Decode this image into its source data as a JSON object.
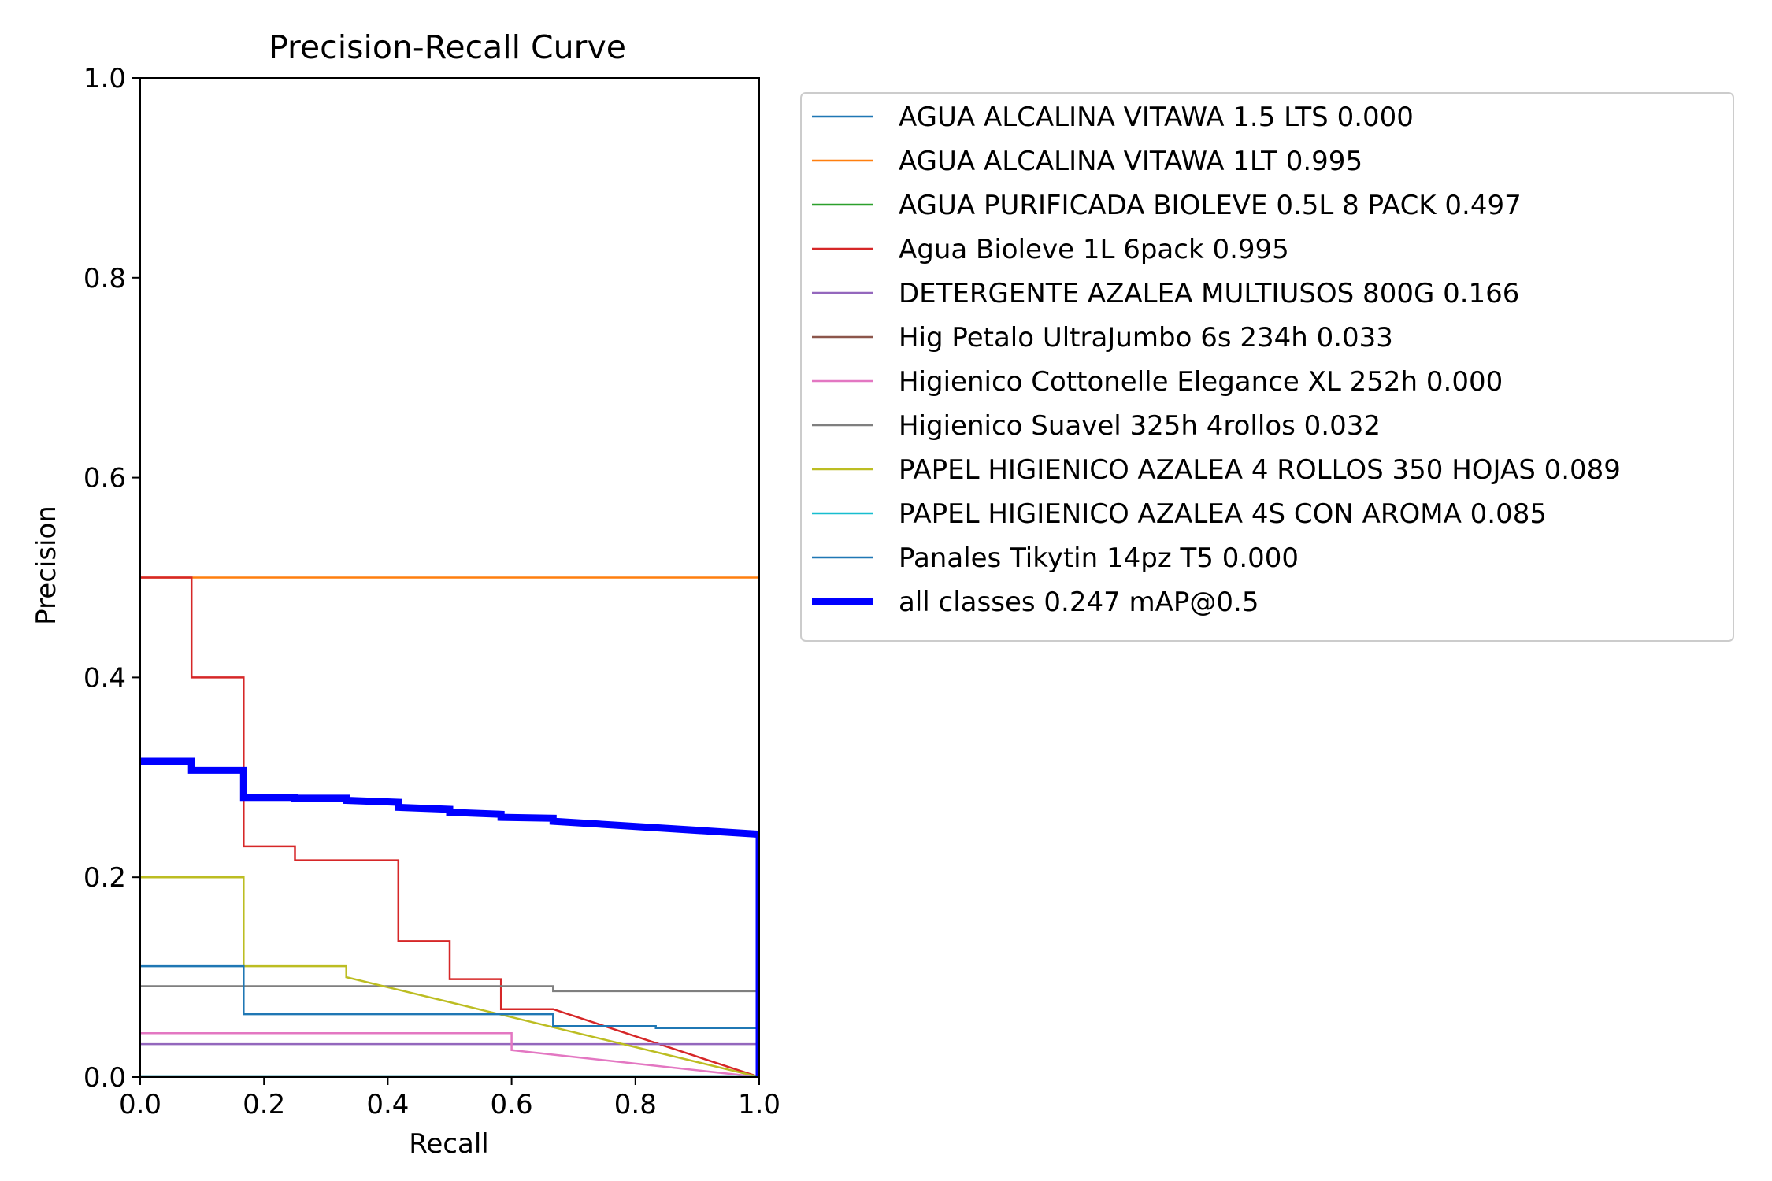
{
  "chart_data": {
    "type": "line",
    "title": "Precision-Recall Curve",
    "xlabel": "Recall",
    "ylabel": "Precision",
    "xlim": [
      0.0,
      1.0
    ],
    "ylim": [
      0.0,
      1.0
    ],
    "xticks": [
      "0.0",
      "0.2",
      "0.4",
      "0.6",
      "0.8",
      "1.0"
    ],
    "yticks": [
      "0.0",
      "0.2",
      "0.4",
      "0.6",
      "0.8",
      "1.0"
    ],
    "grid": false,
    "legend_position": "outside-right-top",
    "series": [
      {
        "name": "AGUA ALCALINA VITAWA 1.5 LTS 0.000",
        "color": "#1f77b4",
        "x": [
          0.0,
          1.0
        ],
        "y": [
          0.0,
          0.0
        ]
      },
      {
        "name": "AGUA ALCALINA VITAWA 1LT 0.995",
        "color": "#ff7f0e",
        "x": [
          0.0,
          1.0,
          1.0
        ],
        "y": [
          0.5,
          0.5,
          0.0
        ]
      },
      {
        "name": "AGUA PURIFICADA BIOLEVE 0.5L 8 PACK 0.497",
        "color": "#2ca02c",
        "x": [
          1.0,
          1.0
        ],
        "y": [
          1.0,
          0.0
        ]
      },
      {
        "name": "Agua Bioleve 1L 6pack 0.995",
        "color": "#d62728",
        "x": [
          0.0,
          0.083,
          0.083,
          0.167,
          0.167,
          0.25,
          0.25,
          0.417,
          0.417,
          0.5,
          0.5,
          0.583,
          0.583,
          0.667,
          1.0
        ],
        "y": [
          0.5,
          0.5,
          0.4,
          0.4,
          0.231,
          0.231,
          0.217,
          0.217,
          0.136,
          0.136,
          0.098,
          0.098,
          0.068,
          0.068,
          0.0
        ]
      },
      {
        "name": "DETERGENTE AZALEA MULTIUSOS 800G 0.166",
        "color": "#9467bd",
        "x": [
          0.0,
          1.0,
          1.0
        ],
        "y": [
          0.033,
          0.033,
          0.0
        ]
      },
      {
        "name": "Hig Petalo UltraJumbo 6s 234h 0.033",
        "color": "#8c564b",
        "x": [
          0.0,
          1.0
        ],
        "y": [
          0.0,
          0.0
        ]
      },
      {
        "name": "Higienico Cottonelle Elegance XL 252h 0.000",
        "color": "#e377c2",
        "x": [
          0.0,
          0.6,
          0.6,
          1.0
        ],
        "y": [
          0.044,
          0.044,
          0.027,
          0.0
        ]
      },
      {
        "name": "Higienico Suavel 325h 4rollos 0.032",
        "color": "#7f7f7f",
        "x": [
          0.0,
          0.667,
          0.667,
          1.0,
          1.0
        ],
        "y": [
          0.091,
          0.091,
          0.086,
          0.086,
          0.0
        ]
      },
      {
        "name": "PAPEL HIGIENICO AZALEA 4 ROLLOS 350 HOJAS 0.089",
        "color": "#bcbd22",
        "x": [
          0.0,
          0.167,
          0.167,
          0.333,
          0.333,
          1.0
        ],
        "y": [
          0.2,
          0.2,
          0.111,
          0.111,
          0.1,
          0.0
        ]
      },
      {
        "name": "PAPEL HIGIENICO AZALEA 4S CON AROMA 0.085",
        "color": "#17becf",
        "x": [
          0.0,
          1.0
        ],
        "y": [
          0.0,
          0.0
        ]
      },
      {
        "name": "Panales Tikytin 14pz T5 0.000",
        "color": "#1f77b4",
        "x": [
          0.0,
          0.167,
          0.167,
          0.667,
          0.667,
          0.833,
          0.833,
          1.0,
          1.0
        ],
        "y": [
          0.111,
          0.111,
          0.063,
          0.063,
          0.051,
          0.051,
          0.049,
          0.049,
          0.0
        ]
      },
      {
        "name": "all classes 0.247 mAP@0.5",
        "color": "#0000ff",
        "bold": true,
        "x": [
          0.0,
          0.083,
          0.083,
          0.167,
          0.167,
          0.25,
          0.25,
          0.333,
          0.333,
          0.417,
          0.417,
          0.5,
          0.5,
          0.583,
          0.583,
          0.667,
          0.667,
          1.0,
          1.0
        ],
        "y": [
          0.316,
          0.316,
          0.307,
          0.307,
          0.28,
          0.28,
          0.279,
          0.279,
          0.277,
          0.275,
          0.27,
          0.268,
          0.265,
          0.263,
          0.26,
          0.259,
          0.256,
          0.243,
          0.0
        ]
      }
    ]
  }
}
